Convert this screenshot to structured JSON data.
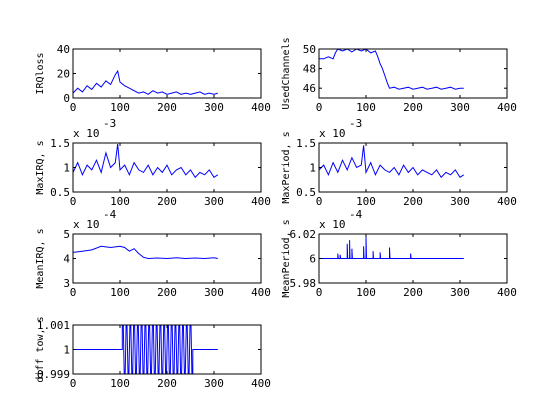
{
  "chart_data": [
    {
      "type": "line",
      "ylabel": "IRQloss",
      "xlim": [
        0,
        400
      ],
      "ylim": [
        0,
        40
      ],
      "xticks": [
        "0",
        "100",
        "200",
        "300",
        "400"
      ],
      "xtick_values": [
        0,
        100,
        200,
        300,
        400
      ],
      "yticks": [
        "0",
        "20",
        "40"
      ],
      "ytick_values": [
        0,
        20,
        40
      ],
      "exponent": "",
      "x": [
        0,
        10,
        20,
        30,
        40,
        50,
        60,
        70,
        80,
        90,
        95,
        100,
        110,
        120,
        130,
        140,
        150,
        160,
        170,
        180,
        190,
        200,
        210,
        220,
        230,
        240,
        250,
        260,
        270,
        280,
        290,
        300,
        308
      ],
      "y": [
        4,
        8,
        5,
        10,
        7,
        12,
        9,
        14,
        11,
        19,
        22,
        13,
        10,
        8,
        6,
        4,
        5,
        3,
        6,
        4,
        5,
        3,
        4,
        5,
        3,
        4,
        3,
        4,
        5,
        3,
        4,
        3,
        4
      ]
    },
    {
      "type": "line",
      "ylabel": "UsedChannels",
      "xlim": [
        0,
        400
      ],
      "ylim": [
        45,
        50
      ],
      "xticks": [
        "0",
        "100",
        "200",
        "300",
        "400"
      ],
      "xtick_values": [
        0,
        100,
        200,
        300,
        400
      ],
      "yticks": [
        "46",
        "48",
        "50"
      ],
      "ytick_values": [
        46,
        48,
        50
      ],
      "exponent": "",
      "x": [
        0,
        10,
        20,
        30,
        35,
        40,
        50,
        60,
        70,
        80,
        90,
        100,
        110,
        120,
        125,
        130,
        135,
        140,
        145,
        150,
        160,
        170,
        180,
        190,
        200,
        210,
        220,
        230,
        240,
        250,
        260,
        270,
        280,
        290,
        300,
        308
      ],
      "y": [
        49,
        49,
        49.2,
        49,
        49.6,
        50,
        49.8,
        50,
        49.7,
        50,
        49.8,
        50,
        49.6,
        49.8,
        49.2,
        48.5,
        48,
        47.3,
        46.6,
        46,
        46.1,
        45.9,
        46,
        46.1,
        45.9,
        46,
        46.1,
        45.9,
        46,
        46.1,
        45.9,
        46,
        46.1,
        45.9,
        46,
        46
      ]
    },
    {
      "type": "line",
      "ylabel": "MaxIRQ, s",
      "xlim": [
        0,
        400
      ],
      "ylim": [
        0.5,
        1.5
      ],
      "xticks": [
        "0",
        "100",
        "200",
        "300",
        "400"
      ],
      "xtick_values": [
        0,
        100,
        200,
        300,
        400
      ],
      "yticks": [
        "0.5",
        "1",
        "1.5"
      ],
      "ytick_values": [
        0.5,
        1,
        1.5
      ],
      "exponent": "x 10",
      "exponent_power": "-3",
      "x": [
        0,
        10,
        20,
        30,
        40,
        50,
        60,
        70,
        80,
        90,
        95,
        100,
        110,
        120,
        130,
        140,
        150,
        160,
        170,
        180,
        190,
        200,
        210,
        220,
        230,
        240,
        250,
        260,
        270,
        280,
        290,
        300,
        308
      ],
      "y": [
        0.9,
        1.1,
        0.85,
        1.05,
        0.95,
        1.15,
        0.9,
        1.3,
        1.0,
        1.1,
        1.48,
        0.95,
        1.05,
        0.85,
        1.1,
        0.95,
        0.9,
        1.05,
        0.85,
        1.0,
        0.9,
        1.05,
        0.85,
        0.95,
        1.0,
        0.85,
        0.95,
        0.8,
        0.9,
        0.85,
        0.95,
        0.8,
        0.85
      ]
    },
    {
      "type": "line",
      "ylabel": "MaxPeriod, s",
      "xlim": [
        0,
        400
      ],
      "ylim": [
        0.5,
        1.5
      ],
      "xticks": [
        "0",
        "100",
        "200",
        "300",
        "400"
      ],
      "xtick_values": [
        0,
        100,
        200,
        300,
        400
      ],
      "yticks": [
        "0.5",
        "1",
        "1.5"
      ],
      "ytick_values": [
        0.5,
        1,
        1.5
      ],
      "exponent": "x 10",
      "exponent_power": "-3",
      "x": [
        0,
        10,
        20,
        30,
        40,
        50,
        60,
        70,
        80,
        90,
        95,
        100,
        110,
        120,
        130,
        140,
        150,
        160,
        170,
        180,
        190,
        200,
        210,
        220,
        230,
        240,
        250,
        260,
        270,
        280,
        290,
        300,
        308
      ],
      "y": [
        0.95,
        1.05,
        0.85,
        1.1,
        0.9,
        1.15,
        0.95,
        1.2,
        1.0,
        1.05,
        1.45,
        0.9,
        1.1,
        0.85,
        1.05,
        0.95,
        0.9,
        1.0,
        0.85,
        1.05,
        0.9,
        1.0,
        0.85,
        0.95,
        0.9,
        0.85,
        0.95,
        0.8,
        0.9,
        0.85,
        0.95,
        0.8,
        0.85
      ]
    },
    {
      "type": "line",
      "ylabel": "MeanIRQ, s",
      "xlim": [
        0,
        400
      ],
      "ylim": [
        3,
        5
      ],
      "xticks": [
        "0",
        "100",
        "200",
        "300",
        "400"
      ],
      "xtick_values": [
        0,
        100,
        200,
        300,
        400
      ],
      "yticks": [
        "3",
        "4",
        "5"
      ],
      "ytick_values": [
        3,
        4,
        5
      ],
      "exponent": "x 10",
      "exponent_power": "-4",
      "x": [
        0,
        20,
        40,
        60,
        80,
        100,
        110,
        120,
        130,
        140,
        150,
        160,
        180,
        200,
        220,
        240,
        260,
        280,
        300,
        308
      ],
      "y": [
        4.25,
        4.3,
        4.35,
        4.5,
        4.45,
        4.5,
        4.45,
        4.3,
        4.4,
        4.2,
        4.05,
        4.0,
        4.02,
        4.0,
        4.03,
        4.0,
        4.02,
        4.0,
        4.03,
        4.0
      ]
    },
    {
      "type": "line",
      "ylabel": "MeanPeriod, s",
      "xlim": [
        0,
        400
      ],
      "ylim": [
        5.98,
        6.02
      ],
      "xticks": [
        "0",
        "100",
        "200",
        "300",
        "400"
      ],
      "xtick_values": [
        0,
        100,
        200,
        300,
        400
      ],
      "yticks": [
        "5.98",
        "6",
        "6.02"
      ],
      "ytick_values": [
        5.98,
        6,
        6.02
      ],
      "exponent": "x 10",
      "exponent_power": "-4",
      "x": [
        0,
        40,
        40,
        41,
        45,
        45,
        46,
        60,
        60,
        61,
        65,
        65,
        66,
        70,
        70,
        71,
        95,
        95,
        96,
        100,
        100,
        101,
        115,
        115,
        116,
        130,
        130,
        131,
        150,
        150,
        151,
        195,
        195,
        196,
        308
      ],
      "y": [
        6,
        6,
        6.004,
        6,
        6,
        6.003,
        6,
        6,
        6.012,
        6,
        6,
        6.015,
        6,
        6,
        6.008,
        6,
        6,
        6.01,
        6,
        6,
        6.018,
        6,
        6,
        6.006,
        6,
        6,
        6.005,
        6,
        6,
        6.009,
        6,
        6,
        6.004,
        6,
        6
      ]
    },
    {
      "type": "line",
      "ylabel": "diff tow, s",
      "xlim": [
        0,
        400
      ],
      "ylim": [
        0.999,
        1.001
      ],
      "xticks": [
        "0",
        "100",
        "200",
        "300",
        "400"
      ],
      "xtick_values": [
        0,
        100,
        200,
        300,
        400
      ],
      "yticks": [
        "0.999",
        "1",
        "1.001"
      ],
      "ytick_values": [
        0.999,
        1,
        1.001
      ],
      "exponent": "",
      "note_oscillation": {
        "start": 105,
        "end": 255,
        "step": 4
      },
      "x": [
        0,
        105,
        255,
        308
      ],
      "y": [
        1,
        1,
        1,
        1
      ]
    }
  ]
}
